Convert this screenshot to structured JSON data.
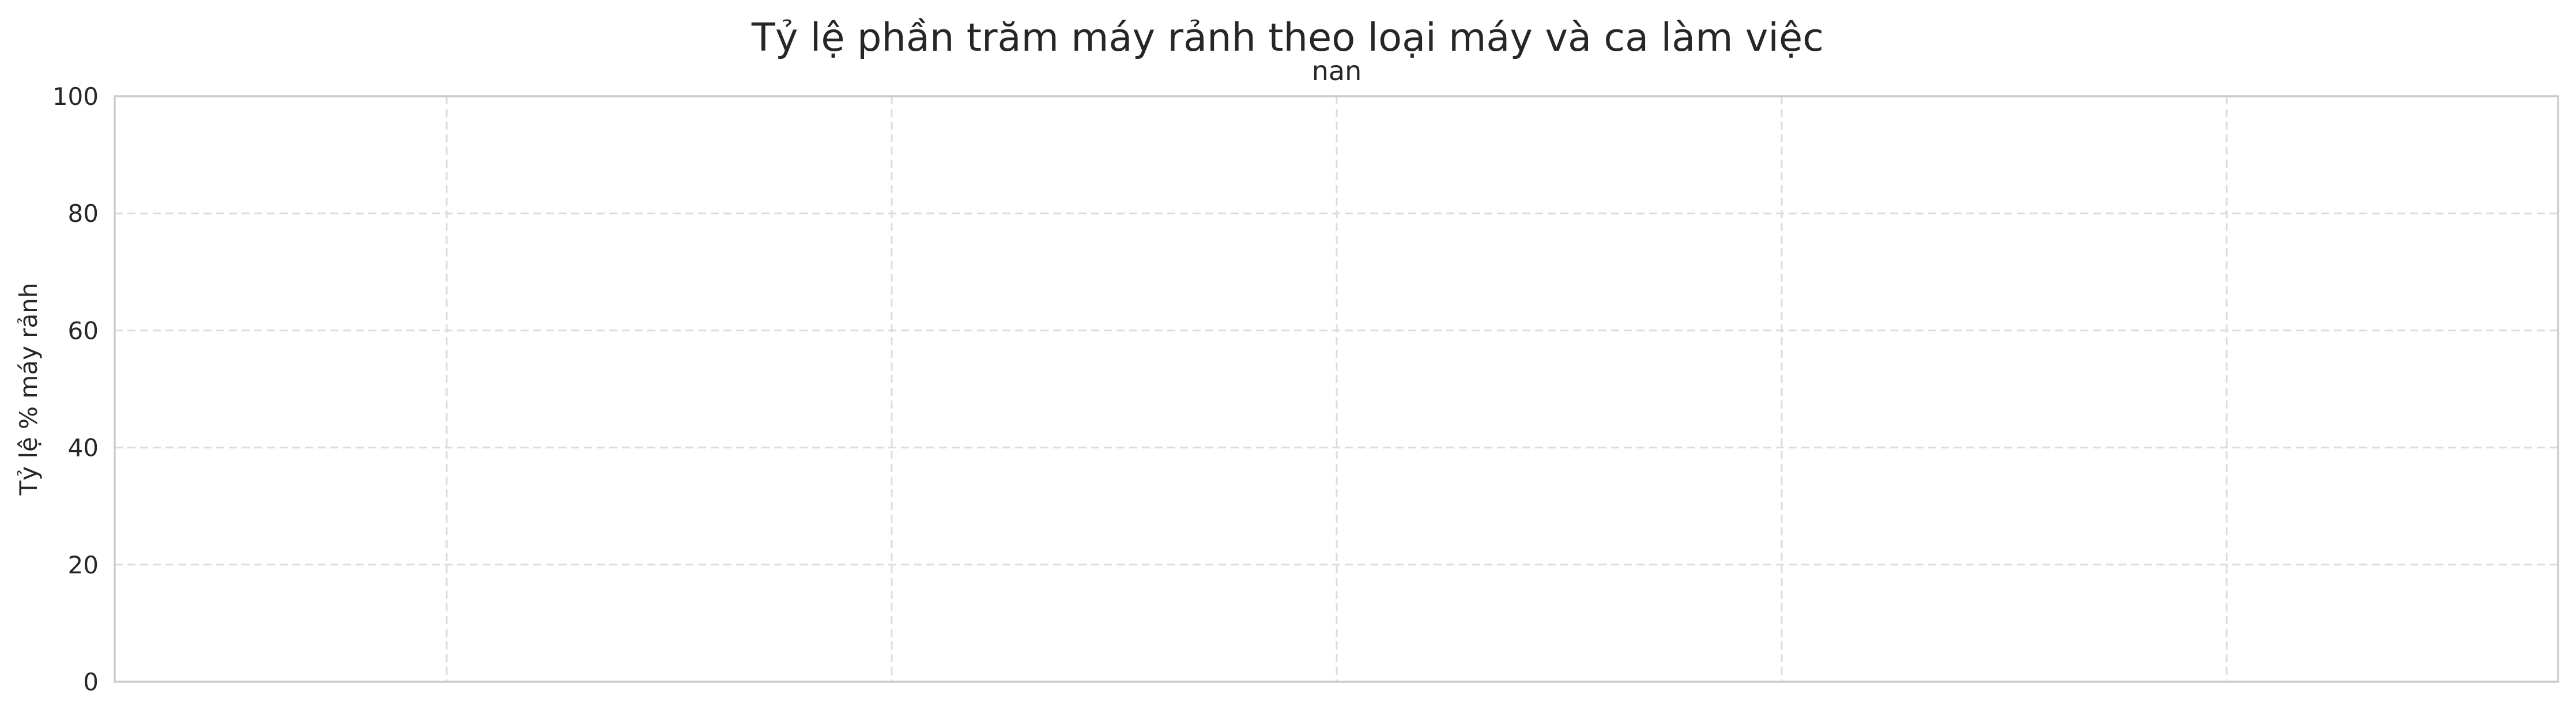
{
  "chart_data": {
    "type": "bar",
    "title": "Tỷ lệ phần trăm máy rảnh theo loại máy và ca làm việc",
    "subtitle": "nan",
    "xlabel": "",
    "ylabel": "Tỷ lệ % máy rảnh",
    "categories": [],
    "series": [],
    "ylim": [
      0,
      100
    ],
    "yticks": [
      "0",
      "20",
      "40",
      "60",
      "80",
      "100"
    ],
    "x_gridline_count": 5,
    "grid": true,
    "legend": "none"
  }
}
